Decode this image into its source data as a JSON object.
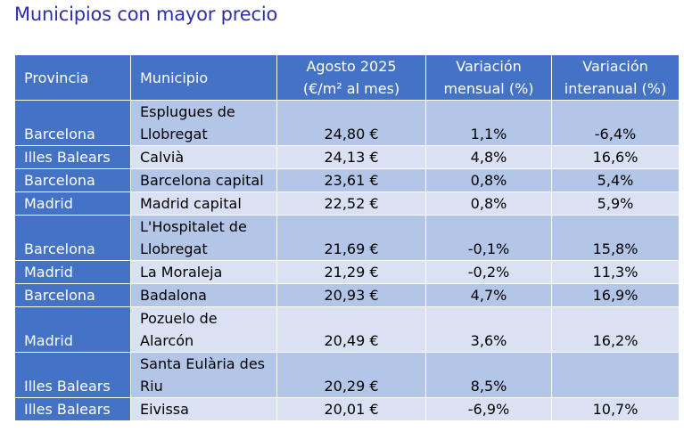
{
  "title": "Municipios con mayor precio",
  "headers": {
    "provincia": "Provincia",
    "municipio": "Municipio",
    "agosto_line1": "Agosto 2025",
    "agosto_line2": "(€/m² al mes)",
    "mensual_line1": "Variación",
    "mensual_line2": "mensual (%)",
    "interanual_line1": "Variación",
    "interanual_line2": "interanual (%)"
  },
  "rows": [
    {
      "provincia": "Barcelona",
      "municipio": "Esplugues de Llobregat",
      "precio": "24,80 €",
      "mensual": "1,1%",
      "interanual": "-6,4%"
    },
    {
      "provincia": "Illes Balears",
      "municipio": "Calvià",
      "precio": "24,13 €",
      "mensual": "4,8%",
      "interanual": "16,6%"
    },
    {
      "provincia": "Barcelona",
      "municipio": "Barcelona capital",
      "precio": "23,61 €",
      "mensual": "0,8%",
      "interanual": "5,4%"
    },
    {
      "provincia": "Madrid",
      "municipio": "Madrid capital",
      "precio": "22,52 €",
      "mensual": "0,8%",
      "interanual": "5,9%"
    },
    {
      "provincia": "Barcelona",
      "municipio": "L'Hospitalet de Llobregat",
      "precio": "21,69 €",
      "mensual": "-0,1%",
      "interanual": "15,8%"
    },
    {
      "provincia": "Madrid",
      "municipio": "La Moraleja",
      "precio": "21,29 €",
      "mensual": "-0,2%",
      "interanual": "11,3%"
    },
    {
      "provincia": "Barcelona",
      "municipio": "Badalona",
      "precio": "20,93 €",
      "mensual": "4,7%",
      "interanual": "16,9%"
    },
    {
      "provincia": "Madrid",
      "municipio": "Pozuelo de Alarcón",
      "precio": "20,49 €",
      "mensual": "3,6%",
      "interanual": "16,2%"
    },
    {
      "provincia": "Illes Balears",
      "municipio": "Santa Eulària des Riu",
      "precio": "20,29 €",
      "mensual": "8,5%",
      "interanual": ""
    },
    {
      "provincia": "Illes Balears",
      "municipio": "Eivissa",
      "precio": "20,01 €",
      "mensual": "-6,9%",
      "interanual": "10,7%"
    }
  ],
  "colors": {
    "header_bg": "#4472c4",
    "row_dark": "#b4c6e7",
    "row_light": "#d9e1f2",
    "negative": "#c00000",
    "title": "#2f2fa8"
  }
}
